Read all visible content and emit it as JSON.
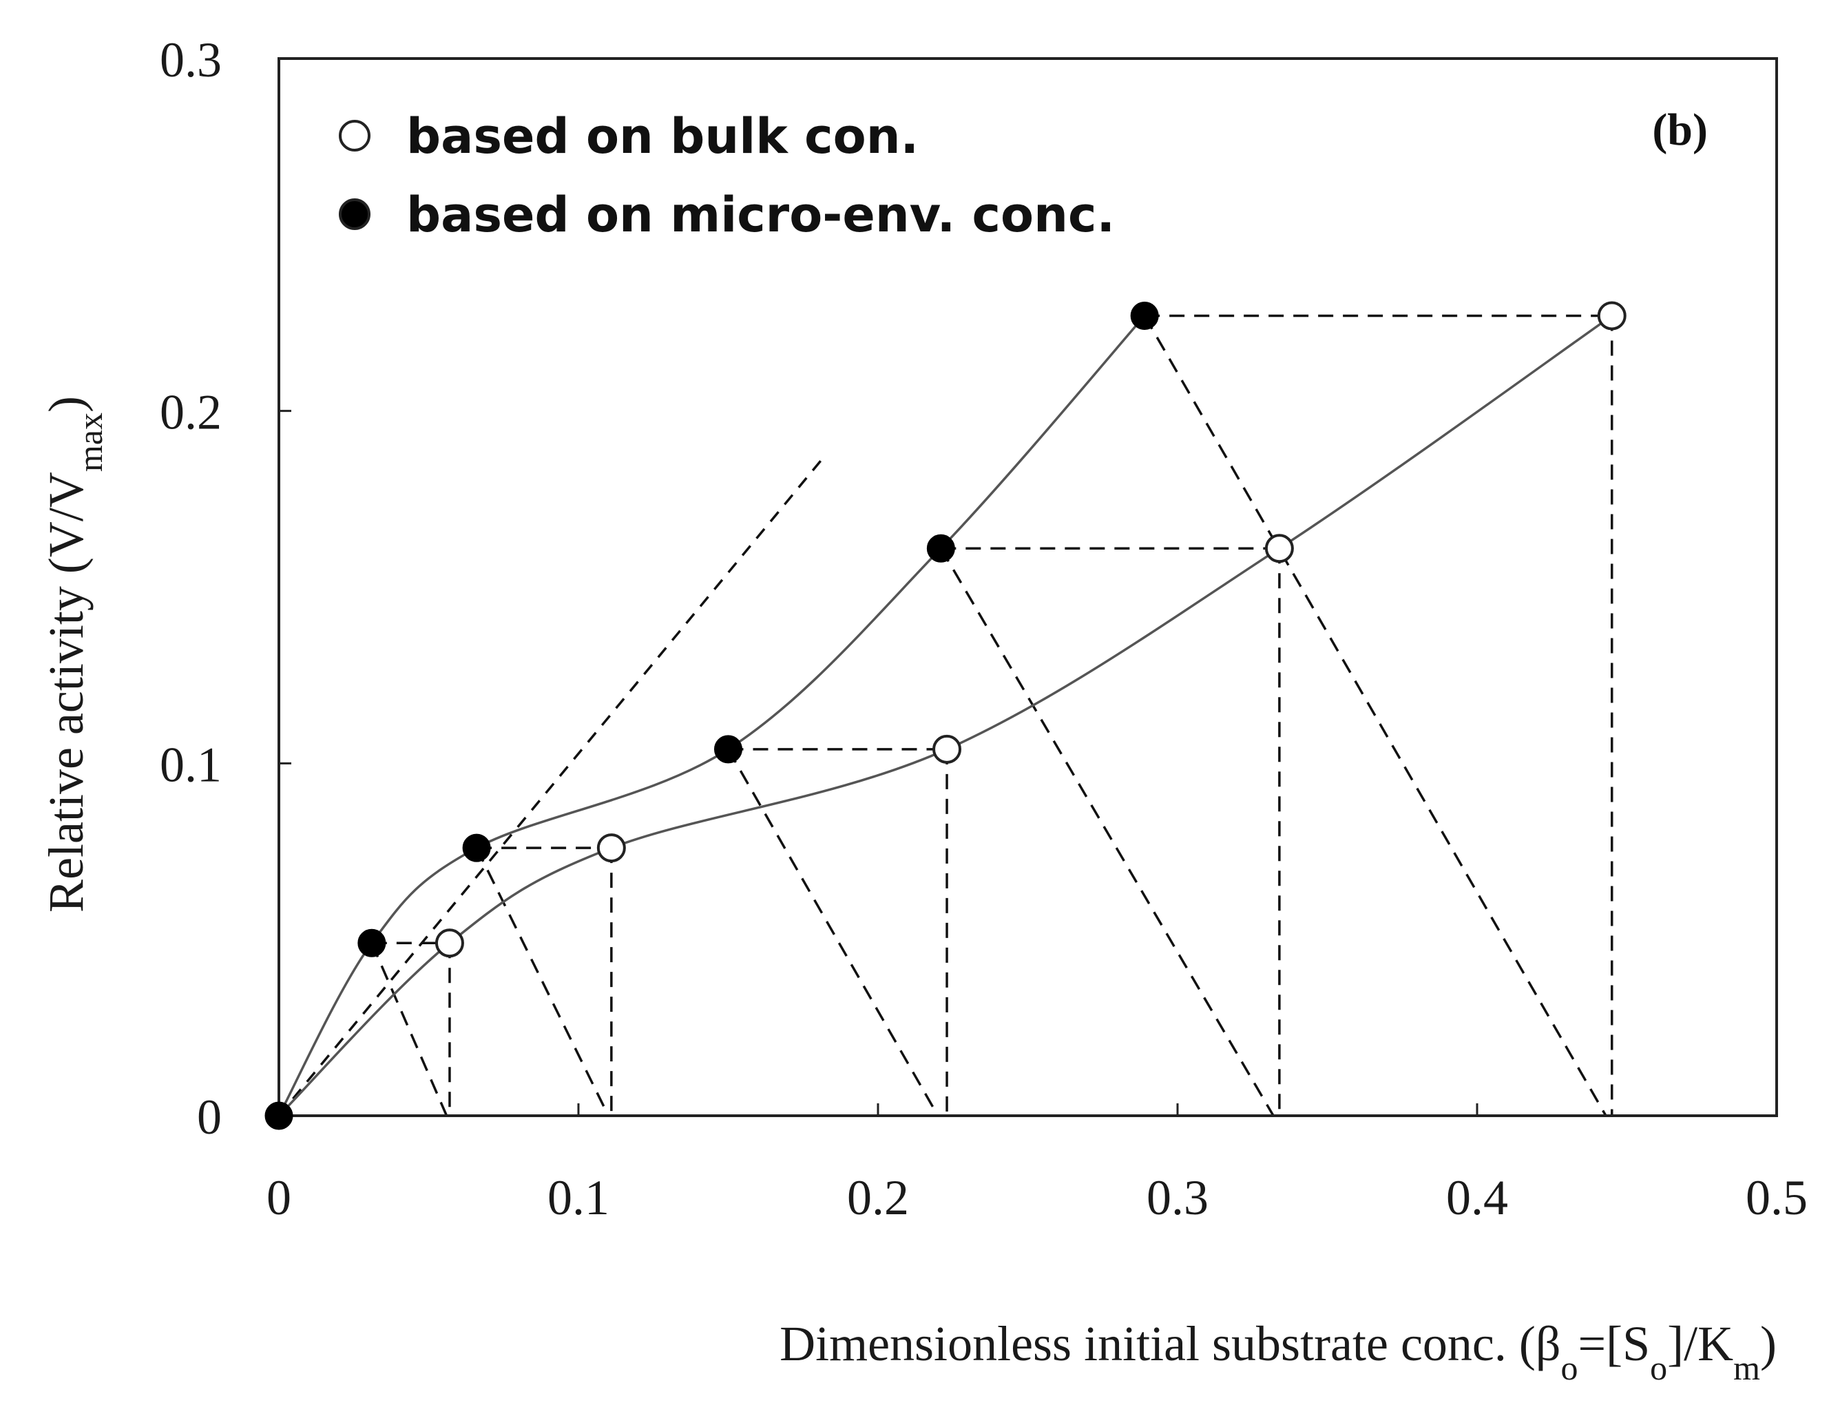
{
  "chart_data": {
    "type": "line",
    "panel_label": "(b)",
    "xlim": [
      0,
      0.5
    ],
    "ylim": [
      0,
      0.3
    ],
    "x_ticks": [
      "0",
      "0.1",
      "0.2",
      "0.3",
      "0.4",
      "0.5"
    ],
    "y_ticks": [
      "0",
      "0.1",
      "0.2",
      "0.3"
    ],
    "xlabel": {
      "prefix": "Dimensionless  initial  substrate  conc.  (β",
      "sub1": "o",
      "mid": "=[S",
      "sub2": "o",
      "mid2": "]/K",
      "sub3": "m",
      "suffix": ")"
    },
    "ylabel": {
      "prefix": "Relative  activity  (V/V",
      "sub": "max",
      "suffix": ")"
    },
    "legend": [
      {
        "marker": "open-circle",
        "label": "based on bulk con."
      },
      {
        "marker": "filled-circle",
        "label": "based on micro-env. conc."
      }
    ],
    "series": [
      {
        "name": "based on bulk con.",
        "marker": "open",
        "x": [
          0,
          0.057,
          0.111,
          0.223,
          0.334,
          0.445
        ],
        "y": [
          0,
          0.049,
          0.076,
          0.104,
          0.161,
          0.227
        ]
      },
      {
        "name": "based on micro-env. conc.",
        "marker": "filled",
        "x": [
          0,
          0.031,
          0.066,
          0.15,
          0.221,
          0.289
        ],
        "y": [
          0,
          0.049,
          0.076,
          0.104,
          0.161,
          0.227
        ]
      }
    ],
    "initial_slope_line": {
      "x": [
        0,
        0.182
      ],
      "y": [
        0,
        0.187
      ]
    },
    "operating_lines_x_intercepts": [
      0.056,
      0.11,
      0.22,
      0.332,
      0.443
    ],
    "colors": {
      "line": "#555555",
      "marker_fill": "#000000",
      "axis": "#222222"
    }
  }
}
